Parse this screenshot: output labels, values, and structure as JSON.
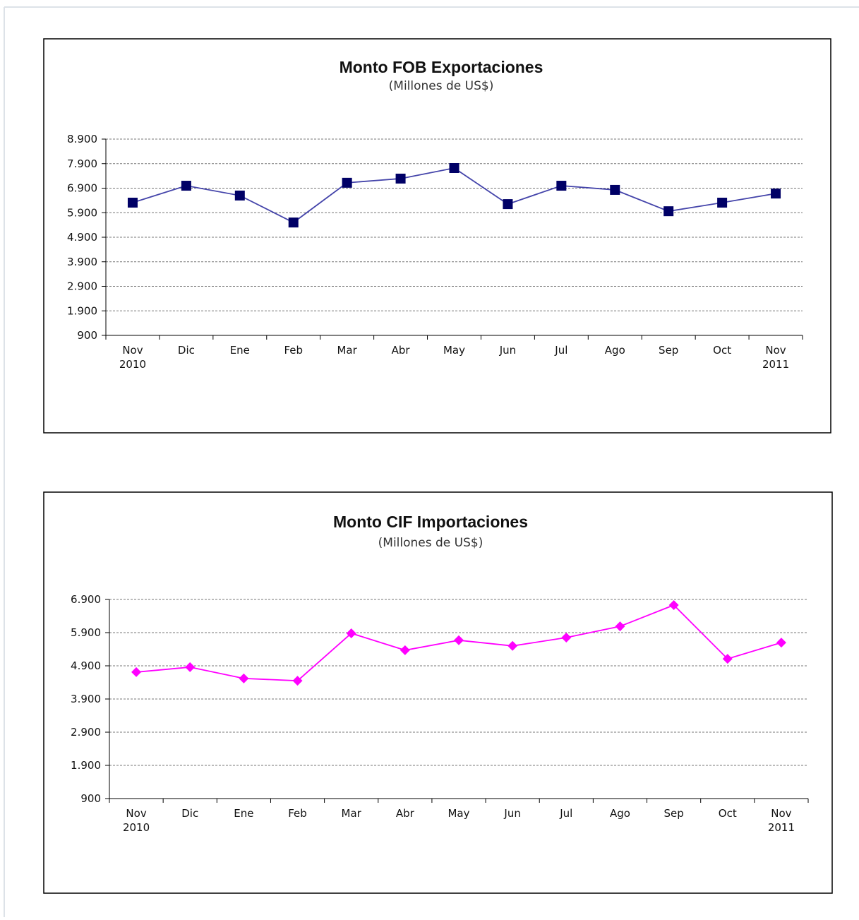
{
  "chart_data": [
    {
      "type": "line",
      "title": "Monto FOB Exportaciones",
      "subtitle": "(Millones de US$)",
      "categories": [
        "Nov 2010",
        "Dic",
        "Ene",
        "Feb",
        "Mar",
        "Abr",
        "May",
        "Jun",
        "Jul",
        "Ago",
        "Sep",
        "Oct",
        "Nov 2011"
      ],
      "values": [
        6310,
        7000,
        6600,
        5500,
        7120,
        7290,
        7720,
        6250,
        7000,
        6830,
        5960,
        6310,
        6680
      ],
      "color": "#000066",
      "line_color": "#4444aa",
      "marker": "square",
      "ylim": [
        900,
        8900
      ],
      "yticks": [
        900,
        {
          "value": 1900,
          "label": "1.900"
        },
        {
          "value": 2900,
          "label": "2.900"
        },
        {
          "value": 3900,
          "label": "3.900"
        },
        {
          "value": 4900,
          "label": "4.900"
        },
        {
          "value": 5900,
          "label": "5.900"
        },
        {
          "value": 6900,
          "label": "6.900"
        },
        {
          "value": 7900,
          "label": "7.900"
        },
        {
          "value": 8900,
          "label": "8.900"
        }
      ],
      "grid": true
    },
    {
      "type": "line",
      "title": "Monto CIF Importaciones",
      "subtitle": "(Millones de US$)",
      "categories": [
        "Nov 2010",
        "Dic",
        "Ene",
        "Feb",
        "Mar",
        "Abr",
        "May",
        "Jun",
        "Jul",
        "Ago",
        "Sep",
        "Oct",
        "Nov 2011"
      ],
      "values": [
        4710,
        4860,
        4520,
        4450,
        5880,
        5370,
        5670,
        5500,
        5750,
        6090,
        6730,
        5110,
        5600
      ],
      "color": "#ff00ff",
      "line_color": "#ff00ff",
      "marker": "diamond",
      "ylim": [
        900,
        6900
      ],
      "yticks": [
        900,
        {
          "value": 1900,
          "label": "1.900"
        },
        {
          "value": 2900,
          "label": "2.900"
        },
        {
          "value": 3900,
          "label": "3.900"
        },
        {
          "value": 4900,
          "label": "4.900"
        },
        {
          "value": 5900,
          "label": "5.900"
        },
        {
          "value": 6900,
          "label": "6.900"
        }
      ],
      "grid": true
    }
  ]
}
